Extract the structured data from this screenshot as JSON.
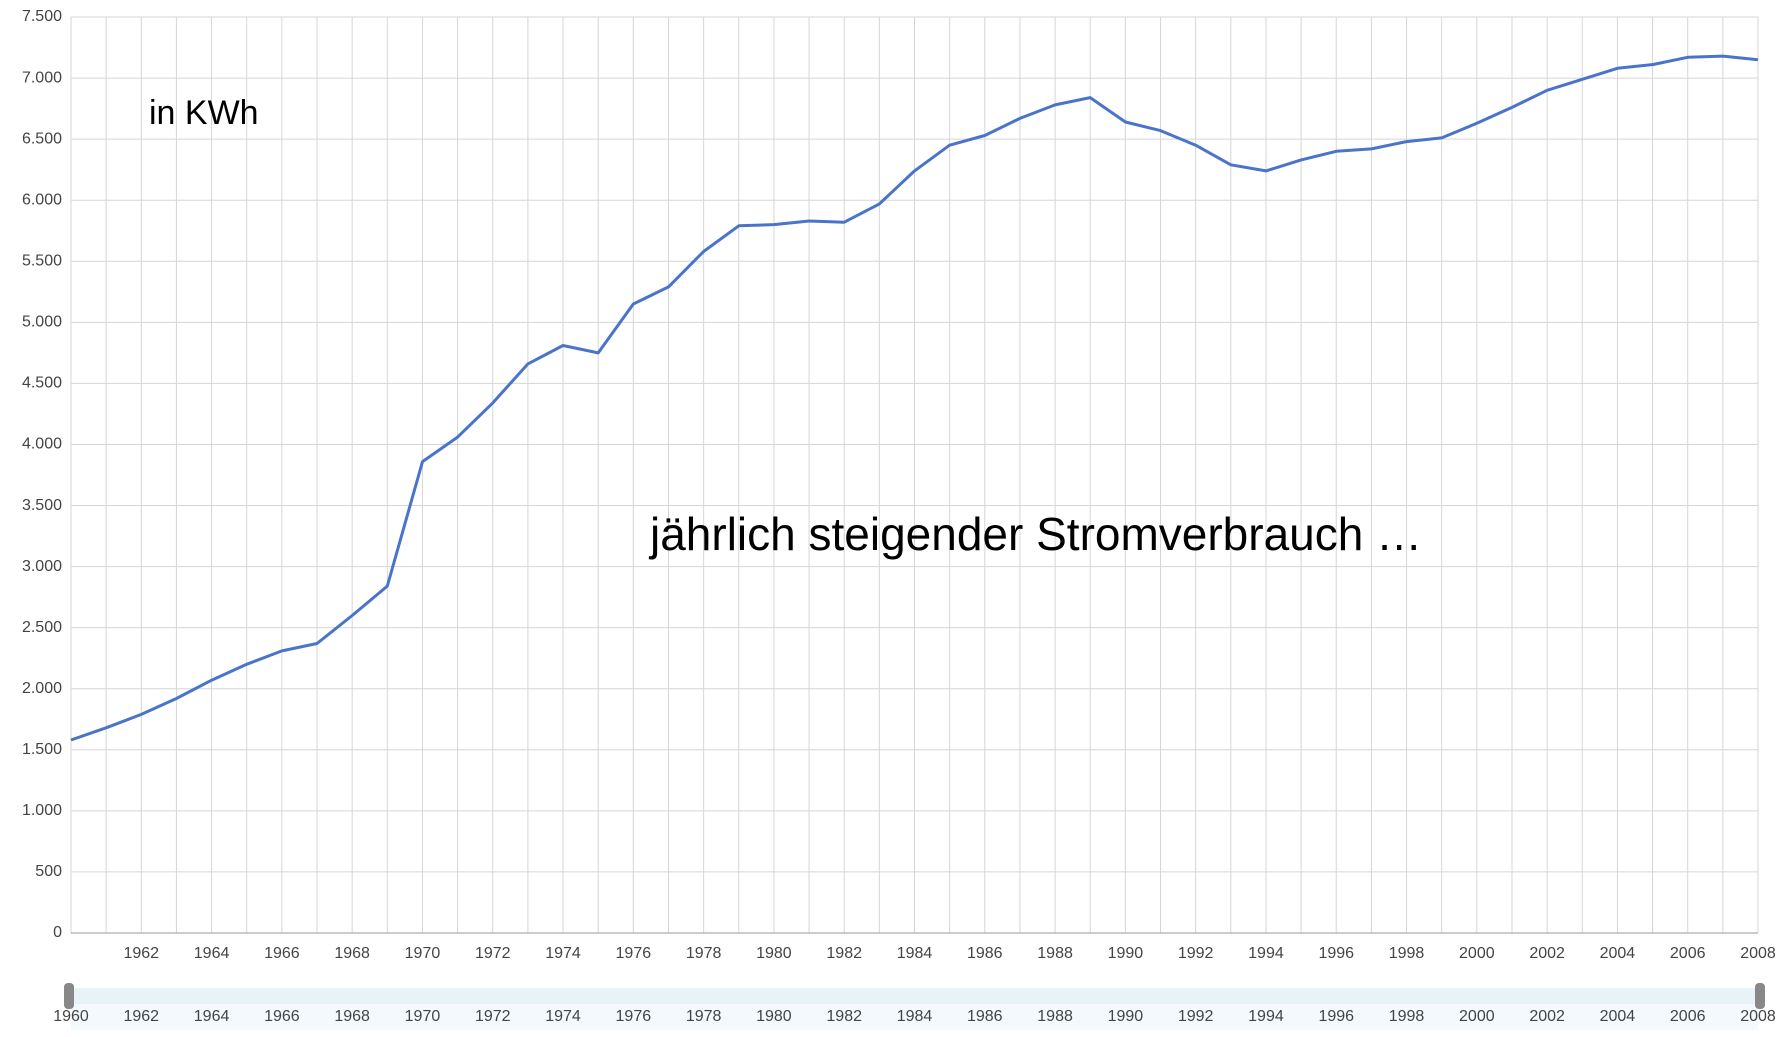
{
  "chart_data": {
    "type": "line",
    "annotations": [
      "in KWh",
      "jährlich steigender Stromverbrauch …"
    ],
    "x": [
      1960,
      1961,
      1962,
      1963,
      1964,
      1965,
      1966,
      1967,
      1968,
      1969,
      1970,
      1971,
      1972,
      1973,
      1974,
      1975,
      1976,
      1977,
      1978,
      1979,
      1980,
      1981,
      1982,
      1983,
      1984,
      1985,
      1986,
      1987,
      1988,
      1989,
      1990,
      1991,
      1992,
      1993,
      1994,
      1995,
      1996,
      1997,
      1998,
      1999,
      2000,
      2001,
      2002,
      2003,
      2004,
      2005,
      2006,
      2007,
      2008
    ],
    "series": [
      {
        "color": "#4a74c9",
        "values": [
          1580,
          1680,
          1790,
          1920,
          2070,
          2200,
          2310,
          2370,
          2600,
          2840,
          3860,
          4060,
          4340,
          4660,
          4810,
          4750,
          5150,
          5290,
          5580,
          5790,
          5800,
          5830,
          5820,
          5970,
          6240,
          6450,
          6530,
          6670,
          6780,
          6840,
          6640,
          6570,
          6450,
          6290,
          6240,
          6330,
          6400,
          6420,
          6480,
          6510,
          6630,
          6760,
          6900,
          6990,
          7080,
          7110,
          7170,
          7180,
          7150
        ]
      }
    ],
    "xlim": [
      1960,
      2008
    ],
    "xticks": [
      1962,
      1964,
      1966,
      1968,
      1970,
      1972,
      1974,
      1976,
      1978,
      1980,
      1982,
      1984,
      1986,
      1988,
      1990,
      1992,
      1994,
      1996,
      1998,
      2000,
      2002,
      2004,
      2006,
      2008
    ],
    "navigator_xticks": [
      1960,
      1962,
      1964,
      1966,
      1968,
      1970,
      1972,
      1974,
      1976,
      1978,
      1980,
      1982,
      1984,
      1986,
      1988,
      1990,
      1992,
      1994,
      1996,
      1998,
      2000,
      2002,
      2004,
      2006,
      2008
    ],
    "ylim": [
      0,
      7500
    ],
    "yticks": [
      0,
      500,
      {
        "value": 1000,
        "label": "1.000"
      },
      {
        "value": 1500,
        "label": "1.500"
      },
      {
        "value": 2000,
        "label": "2.000"
      },
      {
        "value": 2500,
        "label": "2.500"
      },
      {
        "value": 3000,
        "label": "3.000"
      },
      {
        "value": 3500,
        "label": "3.500"
      },
      {
        "value": 4000,
        "label": "4.000"
      },
      {
        "value": 4500,
        "label": "4.500"
      },
      {
        "value": 5000,
        "label": "5.000"
      },
      {
        "value": 5500,
        "label": "5.500"
      },
      {
        "value": 6000,
        "label": "6.000"
      },
      {
        "value": 6500,
        "label": "6.500"
      },
      {
        "value": 7000,
        "label": "7.000"
      },
      {
        "value": 7500,
        "label": "7.500"
      }
    ],
    "grid": true
  }
}
